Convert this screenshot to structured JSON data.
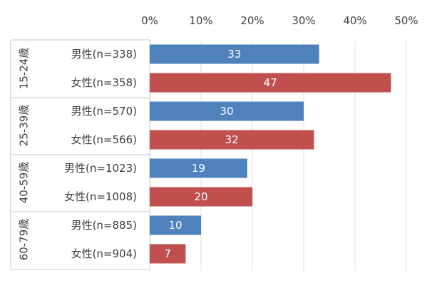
{
  "chart_data": {
    "type": "bar",
    "orientation": "horizontal",
    "title": "",
    "xlabel": "",
    "ylabel": "",
    "xlim": [
      0,
      50
    ],
    "x_ticks": [
      "0%",
      "10%",
      "20%",
      "30%",
      "40%",
      "50%"
    ],
    "x_tick_values": [
      0,
      10,
      20,
      30,
      40,
      50
    ],
    "grid": true,
    "colors": {
      "male": "#4f81bd",
      "female": "#c0504d"
    },
    "groups": [
      {
        "label": "15-24歳",
        "bars": [
          {
            "label": "男性(n=338)",
            "series": "male",
            "value": 33
          },
          {
            "label": "女性(n=358)",
            "series": "female",
            "value": 47
          }
        ]
      },
      {
        "label": "25-39歳",
        "bars": [
          {
            "label": "男性(n=570)",
            "series": "male",
            "value": 30
          },
          {
            "label": "女性(n=566)",
            "series": "female",
            "value": 32
          }
        ]
      },
      {
        "label": "40-59歳",
        "bars": [
          {
            "label": "男性(n=1023)",
            "series": "male",
            "value": 19
          },
          {
            "label": "女性(n=1008)",
            "series": "female",
            "value": 20
          }
        ]
      },
      {
        "label": "60-79歳",
        "bars": [
          {
            "label": "男性(n=885)",
            "series": "male",
            "value": 10
          },
          {
            "label": "女性(n=904)",
            "series": "female",
            "value": 7
          }
        ]
      }
    ]
  }
}
